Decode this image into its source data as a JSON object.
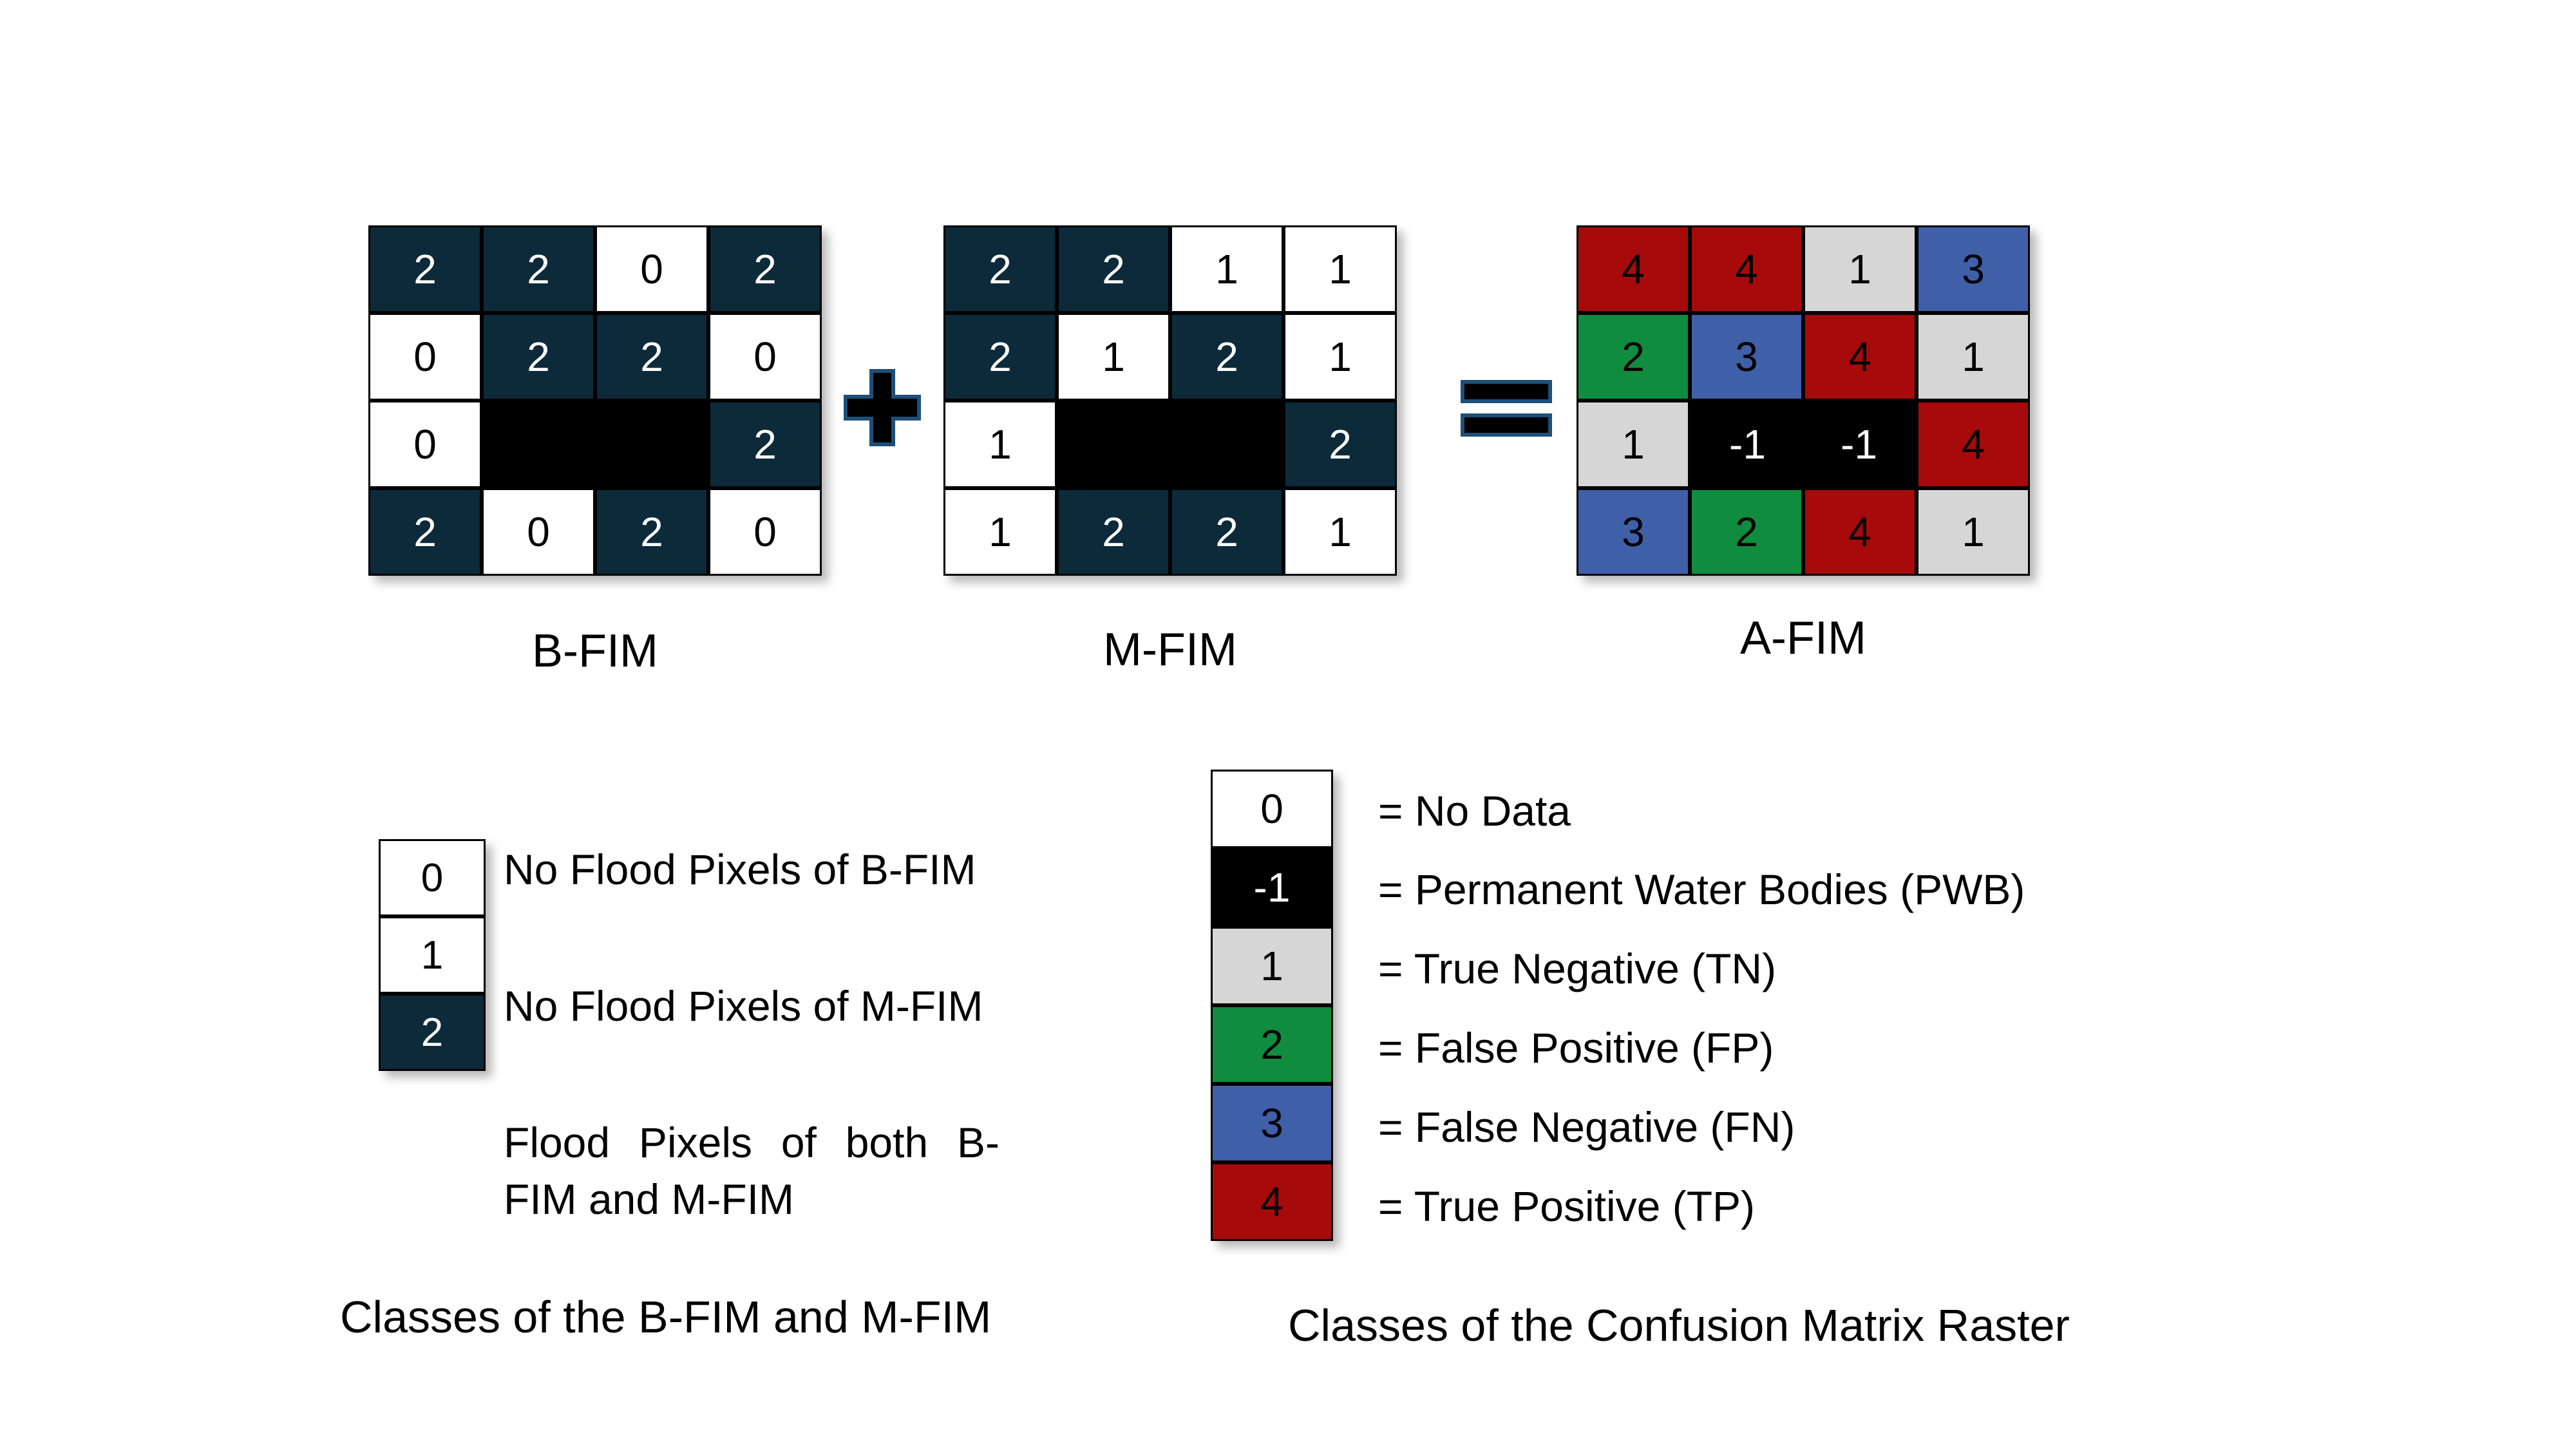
{
  "grids": {
    "bfim": {
      "label": "B-FIM",
      "cells": [
        [
          "2",
          "2",
          "0",
          "2"
        ],
        [
          "0",
          "2",
          "2",
          "0"
        ],
        [
          "0",
          "",
          "",
          "2"
        ],
        [
          "2",
          "0",
          "2",
          "0"
        ]
      ]
    },
    "mfim": {
      "label": "M-FIM",
      "cells": [
        [
          "2",
          "2",
          "1",
          "1"
        ],
        [
          "2",
          "1",
          "2",
          "1"
        ],
        [
          "1",
          "",
          "",
          "2"
        ],
        [
          "1",
          "2",
          "2",
          "1"
        ]
      ]
    },
    "afim": {
      "label": "A-FIM",
      "cells": [
        [
          "4",
          "4",
          "1",
          "3"
        ],
        [
          "2",
          "3",
          "4",
          "1"
        ],
        [
          "1",
          "-1",
          "-1",
          "4"
        ],
        [
          "3",
          "2",
          "4",
          "1"
        ]
      ]
    }
  },
  "operators": {
    "plus": "plus-sign",
    "equals": "equals-sign"
  },
  "left_legend": {
    "values": [
      "0",
      "1",
      "2"
    ],
    "descriptions": [
      "No Flood Pixels of B-FIM",
      "No Flood Pixels of M-FIM",
      "Flood Pixels of both B-FIM and M-FIM"
    ],
    "caption": "Classes of the B-FIM and M-FIM"
  },
  "right_legend": {
    "values": [
      "0",
      "-1",
      "1",
      "2",
      "3",
      "4"
    ],
    "descriptions": [
      "= No Data",
      "= Permanent Water Bodies (PWB)",
      "= True Negative (TN)",
      "= False Positive (FP)",
      "= False Negative (FN)",
      "= True Positive (TP)"
    ],
    "caption": "Classes of the Confusion Matrix Raster"
  },
  "colors": {
    "navy": "#0c2a3a",
    "black": "#000000",
    "white": "#ffffff",
    "gray": "#d6d6d6",
    "green": "#0f8c3e",
    "blue": "#3f5fa8",
    "red": "#a60a0a"
  }
}
